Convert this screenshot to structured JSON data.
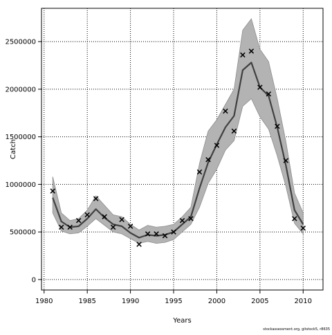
{
  "chart_data": {
    "type": "line",
    "xlabel": "Years",
    "ylabel": "Catch",
    "xlim": [
      1979.7,
      2012.3
    ],
    "ylim": [
      -110000,
      2850000
    ],
    "x_ticks": [
      1980,
      1985,
      1990,
      1995,
      2000,
      2005,
      2010
    ],
    "y_ticks": [
      0,
      500000,
      1000000,
      1500000,
      2000000,
      2500000
    ],
    "grid": "dotted",
    "years": [
      1981,
      1982,
      1983,
      1984,
      1985,
      1986,
      1987,
      1988,
      1989,
      1990,
      1991,
      1992,
      1993,
      1994,
      1995,
      1996,
      1997,
      1998,
      1999,
      2000,
      2001,
      2002,
      2003,
      2004,
      2005,
      2006,
      2007,
      2008,
      2009,
      2010
    ],
    "series": [
      {
        "type": "line",
        "color": "#404040",
        "values": [
          860000,
          610000,
          550000,
          560000,
          640000,
          740000,
          650000,
          580000,
          560000,
          490000,
          440000,
          470000,
          460000,
          470000,
          500000,
          580000,
          660000,
          960000,
          1230000,
          1420000,
          1600000,
          1720000,
          2200000,
          2280000,
          2020000,
          1930000,
          1600000,
          1200000,
          730000,
          580000
        ]
      },
      {
        "type": "band",
        "color": "#b3b3b3",
        "upper": [
          1080000,
          700000,
          620000,
          640000,
          730000,
          880000,
          780000,
          680000,
          660000,
          580000,
          520000,
          570000,
          550000,
          560000,
          580000,
          660000,
          760000,
          1220000,
          1560000,
          1680000,
          1840000,
          2000000,
          2620000,
          2740000,
          2420000,
          2290000,
          1900000,
          1450000,
          910000,
          700000
        ],
        "lower": [
          700000,
          510000,
          480000,
          490000,
          560000,
          640000,
          570000,
          500000,
          480000,
          430000,
          380000,
          400000,
          380000,
          390000,
          420000,
          500000,
          580000,
          760000,
          1010000,
          1160000,
          1360000,
          1460000,
          1820000,
          1900000,
          1710000,
          1580000,
          1300000,
          980000,
          590000,
          480000
        ]
      },
      {
        "type": "scatter",
        "marker": "x",
        "color": "#000000",
        "values": [
          930000,
          550000,
          550000,
          620000,
          680000,
          850000,
          660000,
          550000,
          630000,
          560000,
          370000,
          480000,
          480000,
          460000,
          500000,
          620000,
          640000,
          1130000,
          1260000,
          1410000,
          1770000,
          1560000,
          2360000,
          2400000,
          2020000,
          1950000,
          1610000,
          1250000,
          640000,
          540000
        ]
      }
    ]
  },
  "footer_text": "stockassessment.org, gitstock5, r8635"
}
